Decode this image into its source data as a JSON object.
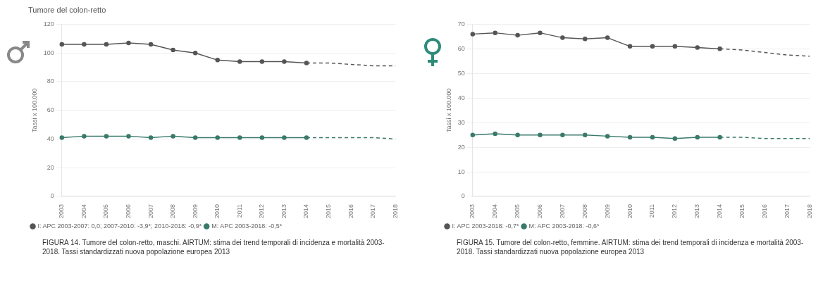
{
  "chart_data": [
    {
      "type": "line",
      "title": "Tumore del colon-retto",
      "ylabel": "Tassi x 100.000",
      "categories": [
        "2003",
        "2004",
        "2005",
        "2006",
        "2007",
        "2008",
        "2009",
        "2010",
        "2011",
        "2012",
        "2013",
        "2014",
        "2015",
        "2016",
        "2017",
        "2018"
      ],
      "ylim": [
        0,
        120
      ],
      "yticks": [
        0,
        20,
        40,
        60,
        80,
        100,
        120
      ],
      "grid": "y",
      "legend": "bottom left",
      "series": [
        {
          "name": "I: APC 2003-2007: 0,0; 2007-2010: -3,9*; 2010-2018: -0,9*",
          "color": "#555555",
          "marker": "circle",
          "line_style": "solid",
          "values": [
            106,
            106,
            106,
            107,
            106,
            102,
            100,
            95,
            94,
            94,
            94,
            93,
            null,
            null,
            null,
            null
          ]
        },
        {
          "color": "#555555",
          "marker": "none",
          "line_style": "dashed",
          "values": [
            null,
            null,
            null,
            null,
            null,
            null,
            null,
            null,
            null,
            null,
            null,
            93,
            93,
            92,
            91,
            91
          ]
        },
        {
          "name": "M: APC 2003-2018: -0,5*",
          "color": "#3a7a6a",
          "marker": "circle",
          "line_style": "solid",
          "values": [
            41,
            42,
            42,
            42,
            41,
            42,
            41,
            41,
            41,
            41,
            41,
            41,
            null,
            null,
            null,
            null
          ]
        },
        {
          "color": "#3a7a6a",
          "marker": "none",
          "line_style": "dashed",
          "values": [
            null,
            null,
            null,
            null,
            null,
            null,
            null,
            null,
            null,
            null,
            null,
            41,
            41,
            41,
            41,
            40
          ]
        }
      ],
      "annotations": [
        "FIGURA 14. Tumore del colon-retto, maschi. AIRTUM: stima dei trend temporali di incidenza e mortalità 2003-2018. Tassi standardizzati nuova popolazione europea 2013"
      ]
    },
    {
      "type": "line",
      "ylabel": "Tassi x 100.000",
      "categories": [
        "2003",
        "2004",
        "2005",
        "2006",
        "2007",
        "2008",
        "2009",
        "2010",
        "2011",
        "2012",
        "2013",
        "2014",
        "2015",
        "2016",
        "2017",
        "2018"
      ],
      "ylim": [
        0,
        70
      ],
      "yticks": [
        0,
        10,
        20,
        30,
        40,
        50,
        60,
        70
      ],
      "grid": "y",
      "legend": "bottom left",
      "series": [
        {
          "name": "I: APC 2003-2018: -0,7*",
          "color": "#555555",
          "marker": "circle",
          "line_style": "solid",
          "values": [
            66,
            66.5,
            65.5,
            66.5,
            64.5,
            64,
            64.5,
            61,
            61,
            61,
            60.5,
            60,
            null,
            null,
            null,
            null
          ]
        },
        {
          "color": "#555555",
          "marker": "none",
          "line_style": "dashed",
          "values": [
            null,
            null,
            null,
            null,
            null,
            null,
            null,
            null,
            null,
            null,
            null,
            60,
            59.5,
            58.5,
            57.5,
            57
          ]
        },
        {
          "name": "M: APC 2003-2018: -0,6*",
          "color": "#3a7a6a",
          "marker": "circle",
          "line_style": "solid",
          "values": [
            25,
            25.5,
            25,
            25,
            25,
            25,
            24.5,
            24,
            24,
            23.5,
            24,
            24,
            null,
            null,
            null,
            null
          ]
        },
        {
          "color": "#3a7a6a",
          "marker": "none",
          "line_style": "dashed",
          "values": [
            null,
            null,
            null,
            null,
            null,
            null,
            null,
            null,
            null,
            null,
            null,
            24,
            24,
            23.5,
            23.5,
            23.5
          ]
        }
      ],
      "annotations": [
        "FIGURA 15. Tumore del colon-retto, femmine. AIRTUM: stima dei trend temporali di incidenza e mortalità 2003-2018. Tassi standardizzati nuova popolazione europea 2013"
      ]
    }
  ]
}
